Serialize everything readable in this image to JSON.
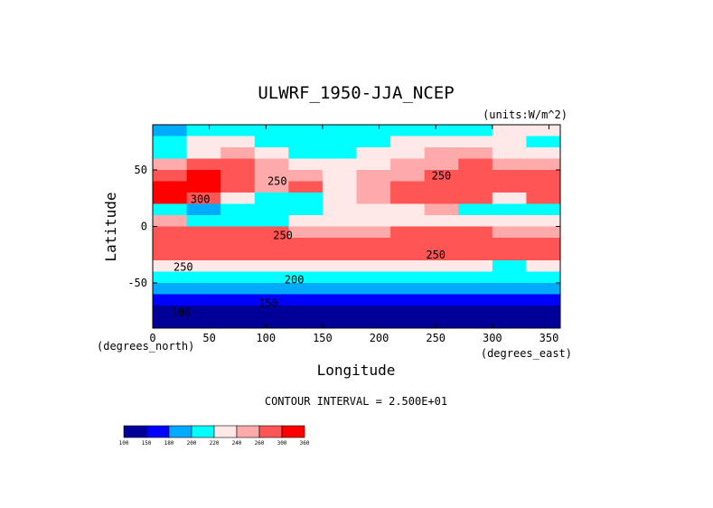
{
  "chart_data": {
    "type": "heatmap",
    "title": "ULWRF_1950-JJA_NCEP",
    "units_label": "(units:W/m^2)",
    "xlabel": "Longitude",
    "ylabel": "Latitude",
    "x_unit_label": "(degrees_east)",
    "y_unit_label": "(degrees_north)",
    "xlim": [
      0,
      360
    ],
    "ylim": [
      -90,
      90
    ],
    "x_ticks": [
      0,
      50,
      100,
      150,
      200,
      250,
      300,
      350
    ],
    "y_ticks": [
      -50,
      0,
      50
    ],
    "contour_interval_text": "CONTOUR INTERVAL = 2.500E+01",
    "contour_labels": [
      {
        "text": "250",
        "lon": 110,
        "lat": 40
      },
      {
        "text": "300",
        "lon": 42,
        "lat": 24
      },
      {
        "text": "250",
        "lon": 255,
        "lat": 45
      },
      {
        "text": "250",
        "lon": 115,
        "lat": -8
      },
      {
        "text": "250",
        "lon": 27,
        "lat": -36
      },
      {
        "text": "250",
        "lon": 250,
        "lat": -25
      },
      {
        "text": "200",
        "lon": 125,
        "lat": -47
      },
      {
        "text": "150",
        "lon": 102,
        "lat": -68
      },
      {
        "text": "100",
        "lon": 25,
        "lat": -76
      }
    ],
    "colorbar": {
      "levels": [
        "100",
        "150",
        "180",
        "200",
        "220",
        "240",
        "260",
        "300",
        "360"
      ],
      "colors": [
        "#000099",
        "#0000ff",
        "#00aaff",
        "#00ffff",
        "#ffe8e8",
        "#ffaaaa",
        "#ff5555",
        "#ff0000"
      ]
    },
    "field": {
      "lats": [
        85,
        75,
        65,
        55,
        45,
        35,
        25,
        15,
        5,
        -5,
        -15,
        -25,
        -35,
        -45,
        -55,
        -65,
        -75,
        -85
      ],
      "lon_step": 30,
      "bins": [
        [
          2,
          3,
          3,
          3,
          3,
          3,
          3,
          3,
          3,
          3,
          4,
          4,
          3
        ],
        [
          3,
          4,
          4,
          3,
          3,
          3,
          3,
          4,
          4,
          4,
          4,
          3,
          3
        ],
        [
          3,
          4,
          5,
          4,
          3,
          3,
          4,
          4,
          5,
          5,
          4,
          4,
          3
        ],
        [
          5,
          6,
          6,
          5,
          4,
          4,
          4,
          5,
          5,
          6,
          5,
          5,
          5
        ],
        [
          6,
          7,
          6,
          5,
          5,
          4,
          5,
          5,
          6,
          6,
          6,
          6,
          6
        ],
        [
          7,
          7,
          6,
          5,
          6,
          4,
          5,
          6,
          6,
          6,
          6,
          6,
          7
        ],
        [
          7,
          6,
          4,
          3,
          3,
          4,
          5,
          6,
          6,
          6,
          4,
          6,
          7
        ],
        [
          3,
          2,
          3,
          3,
          3,
          4,
          4,
          4,
          5,
          3,
          3,
          3,
          3
        ],
        [
          5,
          3,
          3,
          3,
          4,
          4,
          4,
          4,
          4,
          4,
          4,
          4,
          5
        ],
        [
          6,
          6,
          6,
          6,
          5,
          5,
          5,
          6,
          6,
          6,
          5,
          5,
          6
        ],
        [
          6,
          6,
          6,
          6,
          6,
          6,
          6,
          6,
          6,
          6,
          6,
          6,
          6
        ],
        [
          6,
          6,
          6,
          6,
          6,
          6,
          6,
          6,
          6,
          6,
          6,
          6,
          6
        ],
        [
          4,
          4,
          4,
          4,
          4,
          4,
          4,
          4,
          4,
          4,
          3,
          4,
          4
        ],
        [
          3,
          3,
          3,
          3,
          3,
          3,
          3,
          3,
          3,
          3,
          3,
          3,
          3
        ],
        [
          2,
          2,
          2,
          2,
          2,
          2,
          2,
          2,
          2,
          2,
          2,
          2,
          2
        ],
        [
          1,
          1,
          1,
          1,
          1,
          1,
          1,
          1,
          1,
          1,
          1,
          1,
          1
        ],
        [
          0,
          0,
          0,
          0,
          0,
          0,
          0,
          0,
          0,
          0,
          0,
          0,
          0
        ],
        [
          0,
          0,
          0,
          0,
          0,
          0,
          0,
          0,
          0,
          0,
          0,
          0,
          0
        ]
      ]
    }
  }
}
